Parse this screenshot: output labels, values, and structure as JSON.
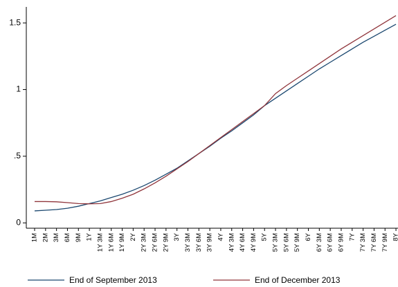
{
  "chart_data": {
    "type": "line",
    "categories": [
      "1M",
      "2M",
      "3M",
      "6M",
      "9M",
      "1Y",
      "1Y 3M",
      "1Y 6M",
      "1Y 9M",
      "2Y",
      "2Y 3M",
      "2Y 6M",
      "2Y 9M",
      "3Y",
      "3Y 3M",
      "3Y 6M",
      "3Y 9M",
      "4Y",
      "4Y 3M",
      "4Y 6M",
      "4Y 9M",
      "5Y",
      "5Y 3M",
      "5Y 6M",
      "5Y 9M",
      "6Y",
      "6Y 3M",
      "6Y 6M",
      "6Y 9M",
      "7Y",
      "7Y 3M",
      "7Y 6M",
      "7Y 9M",
      "8Y"
    ],
    "series": [
      {
        "name": "End of September 2013",
        "color": "#1a476f",
        "values": [
          0.09,
          0.095,
          0.1,
          0.11,
          0.125,
          0.145,
          0.165,
          0.19,
          0.215,
          0.245,
          0.28,
          0.32,
          0.365,
          0.41,
          0.465,
          0.52,
          0.575,
          0.635,
          0.69,
          0.75,
          0.81,
          0.88,
          0.935,
          0.99,
          1.045,
          1.1,
          1.155,
          1.205,
          1.255,
          1.305,
          1.355,
          1.4,
          1.445,
          1.49
        ]
      },
      {
        "name": "End of December 2013",
        "color": "#90353b",
        "values": [
          0.16,
          0.16,
          0.158,
          0.152,
          0.145,
          0.143,
          0.145,
          0.16,
          0.185,
          0.215,
          0.255,
          0.3,
          0.35,
          0.405,
          0.46,
          0.52,
          0.58,
          0.64,
          0.7,
          0.76,
          0.82,
          0.88,
          0.97,
          1.03,
          1.085,
          1.14,
          1.195,
          1.25,
          1.305,
          1.355,
          1.405,
          1.455,
          1.505,
          1.555
        ]
      }
    ],
    "ylim": [
      -0.04,
      1.62
    ],
    "yticks": [
      0,
      {
        "value": 0.5,
        "label": ".5"
      },
      1,
      1.5
    ]
  }
}
